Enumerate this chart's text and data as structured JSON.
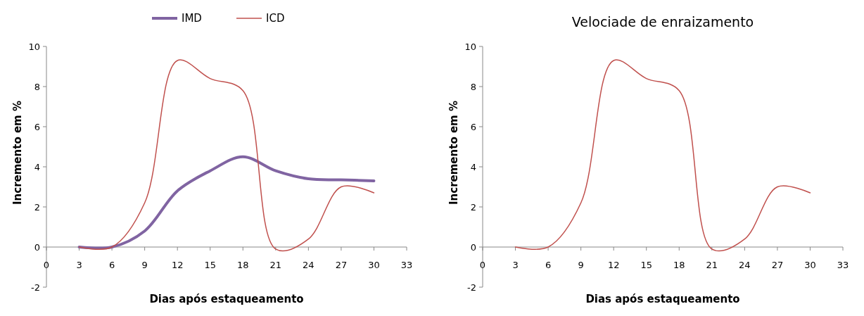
{
  "chart_data": [
    {
      "type": "line",
      "x": [
        3,
        6,
        9,
        12,
        15,
        18,
        21,
        24,
        27,
        30
      ],
      "xlabel": "Dias após estaqueamento",
      "ylabel": "Incremento em %",
      "xlim": [
        0,
        33
      ],
      "xticks": [
        0,
        3,
        6,
        9,
        12,
        15,
        18,
        21,
        24,
        27,
        30,
        33
      ],
      "ylim": [
        -2,
        10
      ],
      "yticks": [
        -2,
        0,
        2,
        4,
        6,
        8,
        10
      ],
      "legend": "top",
      "marker": "none",
      "series": [
        {
          "name": "IMD",
          "color": "#8064a2",
          "values": [
            0,
            0,
            0.8,
            2.8,
            3.8,
            4.5,
            3.8,
            3.4,
            3.35,
            3.3
          ]
        },
        {
          "name": "ICD",
          "color": "#c0504d",
          "values": [
            0,
            0,
            2.2,
            9.3,
            8.4,
            7.8,
            -0.1,
            0.4,
            3.0,
            2.7
          ]
        }
      ]
    },
    {
      "type": "line",
      "title": "Velociade de enraizamento",
      "x": [
        3,
        6,
        9,
        12,
        15,
        18,
        21,
        24,
        27,
        30
      ],
      "xlabel": "Dias após estaqueamento",
      "ylabel": "Incremento em %",
      "xlim": [
        0,
        33
      ],
      "xticks": [
        0,
        3,
        6,
        9,
        12,
        15,
        18,
        21,
        24,
        27,
        30,
        33
      ],
      "ylim": [
        -2,
        10
      ],
      "yticks": [
        -2,
        0,
        2,
        4,
        6,
        8,
        10
      ],
      "legend": false,
      "marker": "none",
      "series": [
        {
          "color": "#c0504d",
          "values": [
            0,
            0,
            2.2,
            9.3,
            8.4,
            7.8,
            -0.1,
            0.4,
            3.0,
            2.7
          ]
        }
      ]
    }
  ]
}
